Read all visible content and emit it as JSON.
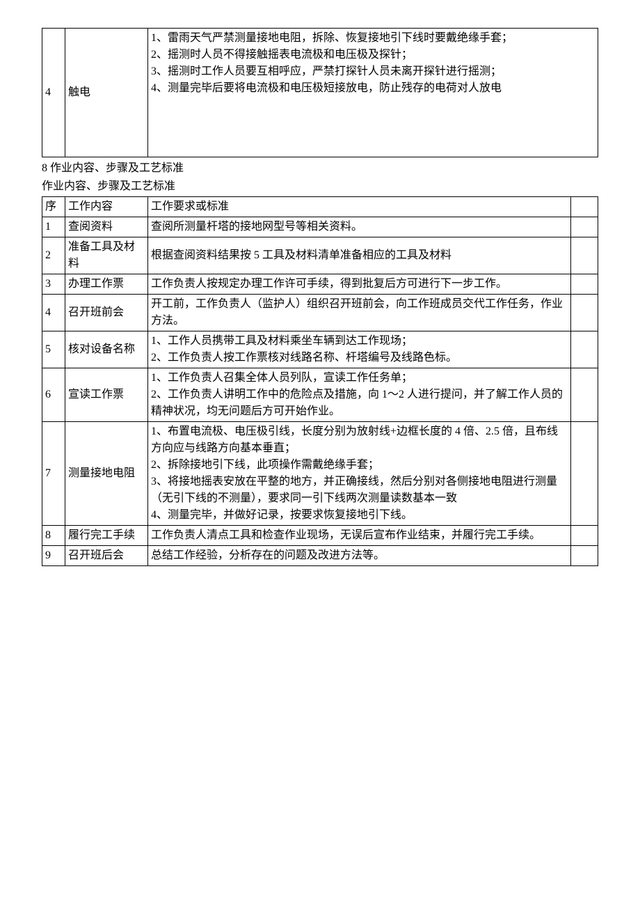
{
  "table1": {
    "row": {
      "seq": "4",
      "name": "触电",
      "content": "1、雷雨天气严禁测量接地电阻，拆除、恢复接地引下线时要戴绝缘手套；\n2、摇测时人员不得接触摇表电流极和电压极及探针；\n3、摇测时工作人员要互相呼应，严禁打探针人员未离开探针进行摇测；\n4、测量完毕后要将电流极和电压极短接放电，防止残存的电荷对人放电"
    }
  },
  "section": {
    "title1": "8 作业内容、步骤及工艺标准",
    "title2": "作业内容、步骤及工艺标准"
  },
  "table2": {
    "header": {
      "seq": "序",
      "name": "工作内容",
      "req": "工作要求或标准"
    },
    "rows": [
      {
        "seq": "1",
        "name": "查阅资料",
        "req": "查阅所测量杆塔的接地网型号等相关资料。"
      },
      {
        "seq": "2",
        "name": "准备工具及材料",
        "req": "根据查阅资料结果按 5 工具及材料清单准备相应的工具及材料"
      },
      {
        "seq": "3",
        "name": "办理工作票",
        "req": "工作负责人按规定办理工作许可手续，得到批复后方可进行下一步工作。"
      },
      {
        "seq": "4",
        "name": "召开班前会",
        "req": "开工前，工作负责人（监护人）组织召开班前会，向工作班成员交代工作任务，作业方法。"
      },
      {
        "seq": "5",
        "name": "核对设备名称",
        "req": "1、工作人员携带工具及材料乘坐车辆到达工作现场；\n2、工作负责人按工作票核对线路名称、杆塔编号及线路色标。"
      },
      {
        "seq": "6",
        "name": "宣读工作票",
        "req": "1、工作负责人召集全体人员列队，宣读工作任务单；\n2、工作负责人讲明工作中的危险点及措施，向 1～2 人进行提问，并了解工作人员的精神状况，均无问题后方可开始作业。"
      },
      {
        "seq": "7",
        "name": "测量接地电阻",
        "req": "1、布置电流极、电压极引线，长度分别为放射线+边框长度的 4 倍、2.5 倍，且布线方向应与线路方向基本垂直；\n2、拆除接地引下线，此项操作需戴绝缘手套；\n3、将接地摇表安放在平整的地方，并正确接线，然后分别对各侧接地电阻进行测量（无引下线的不测量），要求同一引下线两次测量读数基本一致\n4、测量完毕，并做好记录，按要求恢复接地引下线。"
      },
      {
        "seq": "8",
        "name": "履行完工手续",
        "req": "工作负责人清点工具和检查作业现场，无误后宣布作业结束，并履行完工手续。"
      },
      {
        "seq": "9",
        "name": "召开班后会",
        "req": "总结工作经验，分析存在的问题及改进方法等。"
      }
    ]
  }
}
